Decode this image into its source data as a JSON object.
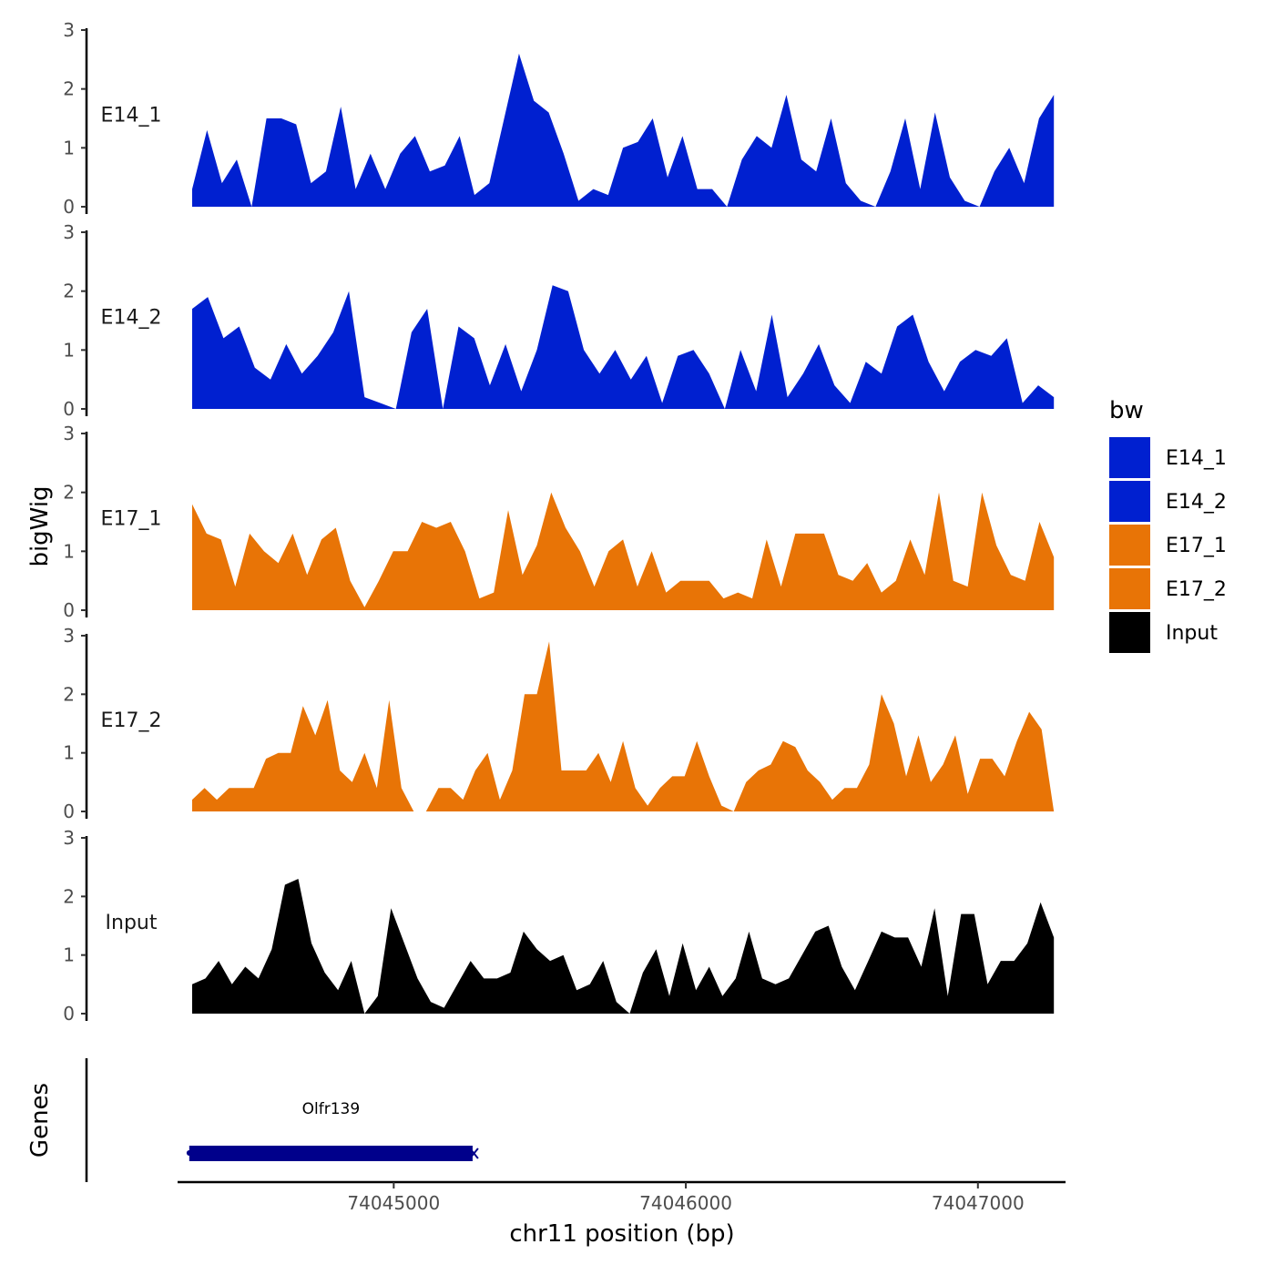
{
  "chart_data": {
    "type": "area",
    "chromosome": "chr11",
    "xlabel": "chr11 position (bp)",
    "ylabel": "bigWig",
    "genes_label": "Genes",
    "xlim": [
      74044260,
      74047300
    ],
    "x_ticks": [
      74045000,
      74046000,
      74047000
    ],
    "x_tick_labels": [
      "74045000",
      "74046000",
      "74047000"
    ],
    "ylim": [
      0,
      3
    ],
    "y_ticks": [
      0,
      1,
      2,
      3
    ],
    "y_tick_labels": [
      "0",
      "1",
      "2",
      "3"
    ],
    "data_range": [
      74044310,
      74047260
    ],
    "legend": {
      "title": "bw",
      "entries": [
        {
          "label": "E14_1",
          "color": "#0020d0"
        },
        {
          "label": "E14_2",
          "color": "#0020d0"
        },
        {
          "label": "E17_1",
          "color": "#e87406"
        },
        {
          "label": "E17_2",
          "color": "#e87406"
        },
        {
          "label": "Input",
          "color": "#000000"
        }
      ]
    },
    "series": [
      {
        "name": "E14_1",
        "color": "#0020d0",
        "values": [
          0.3,
          1.3,
          0.4,
          0.8,
          0,
          1.5,
          1.5,
          1.4,
          0.4,
          0.6,
          1.7,
          0.3,
          0.9,
          0.3,
          0.9,
          1.2,
          0.6,
          0.7,
          1.2,
          0.2,
          0.4,
          1.5,
          2.6,
          1.8,
          1.6,
          0.9,
          0.1,
          0.3,
          0.2,
          1.0,
          1.1,
          1.5,
          0.5,
          1.2,
          0.3,
          0.3,
          0,
          0.8,
          1.2,
          1.0,
          1.9,
          0.8,
          0.6,
          1.5,
          0.4,
          0.1,
          0,
          0.6,
          1.5,
          0.3,
          1.6,
          0.5,
          0.1,
          0,
          0.6,
          1.0,
          0.4,
          1.5,
          1.9
        ]
      },
      {
        "name": "E14_2",
        "color": "#0020d0",
        "values": [
          1.7,
          1.9,
          1.2,
          1.4,
          0.7,
          0.5,
          1.1,
          0.6,
          0.9,
          1.3,
          2.0,
          0.2,
          0.1,
          0,
          1.3,
          1.7,
          0,
          1.4,
          1.2,
          0.4,
          1.1,
          0.3,
          1.0,
          2.1,
          2.0,
          1.0,
          0.6,
          1.0,
          0.5,
          0.9,
          0.1,
          0.9,
          1.0,
          0.6,
          0,
          1.0,
          0.3,
          1.6,
          0.2,
          0.6,
          1.1,
          0.4,
          0.1,
          0.8,
          0.6,
          1.4,
          1.6,
          0.8,
          0.3,
          0.8,
          1.0,
          0.9,
          1.2,
          0.1,
          0.4,
          0.2
        ]
      },
      {
        "name": "E17_1",
        "color": "#e87406",
        "values": [
          1.8,
          1.3,
          1.2,
          0.4,
          1.3,
          1.0,
          0.8,
          1.3,
          0.6,
          1.2,
          1.4,
          0.5,
          0.05,
          0.5,
          1.0,
          1.0,
          1.5,
          1.4,
          1.5,
          1.0,
          0.2,
          0.3,
          1.7,
          0.6,
          1.1,
          2.0,
          1.4,
          1.0,
          0.4,
          1.0,
          1.2,
          0.4,
          1.0,
          0.3,
          0.5,
          0.5,
          0.5,
          0.2,
          0.3,
          0.2,
          1.2,
          0.4,
          1.3,
          1.3,
          1.3,
          0.6,
          0.5,
          0.8,
          0.3,
          0.5,
          1.2,
          0.6,
          2.0,
          0.5,
          0.4,
          2.0,
          1.1,
          0.6,
          0.5,
          1.5,
          0.9
        ]
      },
      {
        "name": "E17_2",
        "color": "#e87406",
        "values": [
          0.2,
          0.4,
          0.2,
          0.4,
          0.4,
          0.4,
          0.9,
          1.0,
          1.0,
          1.8,
          1.3,
          1.9,
          0.7,
          0.5,
          1.0,
          0.4,
          1.9,
          0.4,
          0,
          0,
          0.4,
          0.4,
          0.2,
          0.7,
          1.0,
          0.2,
          0.7,
          2.0,
          2.0,
          2.9,
          0.7,
          0.7,
          0.7,
          1.0,
          0.5,
          1.2,
          0.4,
          0.1,
          0.4,
          0.6,
          0.6,
          1.2,
          0.6,
          0.1,
          0,
          0.5,
          0.7,
          0.8,
          1.2,
          1.1,
          0.7,
          0.5,
          0.2,
          0.4,
          0.4,
          0.8,
          2.0,
          1.5,
          0.6,
          1.3,
          0.5,
          0.8,
          1.3,
          0.3,
          0.9,
          0.9,
          0.6,
          1.2,
          1.7,
          1.4,
          0
        ]
      },
      {
        "name": "Input",
        "color": "#000000",
        "values": [
          0.5,
          0.6,
          0.9,
          0.5,
          0.8,
          0.6,
          1.1,
          2.2,
          2.3,
          1.2,
          0.7,
          0.4,
          0.9,
          0,
          0.3,
          1.8,
          1.2,
          0.6,
          0.2,
          0.1,
          0.5,
          0.9,
          0.6,
          0.6,
          0.7,
          1.4,
          1.1,
          0.9,
          1.0,
          0.4,
          0.5,
          0.9,
          0.2,
          0,
          0.7,
          1.1,
          0.3,
          1.2,
          0.4,
          0.8,
          0.3,
          0.6,
          1.4,
          0.6,
          0.5,
          0.6,
          1.0,
          1.4,
          1.5,
          0.8,
          0.4,
          0.9,
          1.4,
          1.3,
          1.3,
          0.8,
          1.8,
          0.3,
          1.7,
          1.7,
          0.5,
          0.9,
          0.9,
          1.2,
          1.9,
          1.3
        ]
      }
    ],
    "genes": [
      {
        "name": "Olfr139",
        "start": 74044300,
        "end": 74045270,
        "strand": "-",
        "color": "#00008b"
      }
    ]
  }
}
